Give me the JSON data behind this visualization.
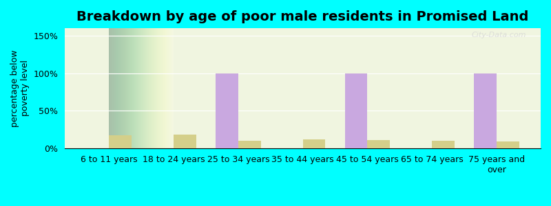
{
  "title": "Breakdown by age of poor male residents in Promised Land",
  "categories": [
    "6 to 11 years",
    "18 to 24 years",
    "25 to 34 years",
    "35 to 44 years",
    "45 to 54 years",
    "65 to 74 years",
    "75 years and\nover"
  ],
  "promised_land": [
    0,
    0,
    100,
    0,
    100,
    0,
    100
  ],
  "south_carolina": [
    17,
    18,
    10,
    12,
    11,
    10,
    9
  ],
  "promised_land_color": "#c9a8e0",
  "south_carolina_color": "#d4cf8a",
  "ylabel": "percentage below\npoverty level",
  "ylim": [
    0,
    160
  ],
  "yticks": [
    0,
    50,
    100,
    150
  ],
  "ytick_labels": [
    "0%",
    "50%",
    "100%",
    "150%"
  ],
  "background_color": "#00FFFF",
  "plot_bg_top": "#f5f5dc",
  "plot_bg_bottom": "#e8f0d0",
  "bar_width": 0.35,
  "title_fontsize": 14,
  "axis_fontsize": 9,
  "watermark": "City-Data.com"
}
